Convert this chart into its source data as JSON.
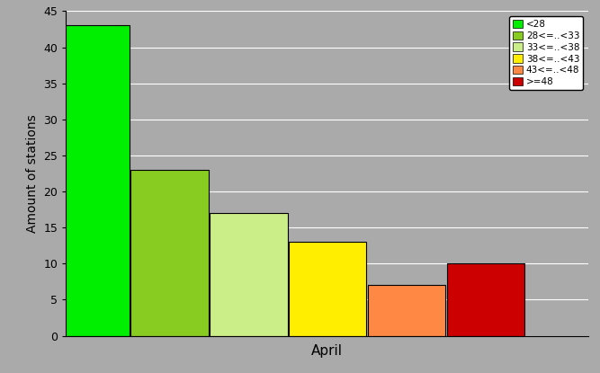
{
  "bars": [
    {
      "label": "<28",
      "value": 43,
      "color": "#00ee00"
    },
    {
      "label": "28<=..<33",
      "value": 23,
      "color": "#88cc22"
    },
    {
      "label": "33<=..<38",
      "value": 17,
      "color": "#ccee88"
    },
    {
      "label": "38<=..<43",
      "value": 13,
      "color": "#ffee00"
    },
    {
      "label": "43<=..<48",
      "value": 7,
      "color": "#ff8844"
    },
    {
      "label": ">=48",
      "value": 10,
      "color": "#cc0000"
    }
  ],
  "xlabel": "April",
  "ylabel": "Amount of stations",
  "ylim": [
    0,
    45
  ],
  "yticks": [
    0,
    5,
    10,
    15,
    20,
    25,
    30,
    35,
    40,
    45
  ],
  "background_color": "#aaaaaa",
  "legend_labels": [
    "<28",
    "28<=..<33",
    "33<=..<38",
    "38<=..<43",
    "43<=..<48",
    ">=48"
  ],
  "legend_colors": [
    "#00ee00",
    "#88cc22",
    "#ccee88",
    "#ffee00",
    "#ff8844",
    "#cc0000"
  ]
}
